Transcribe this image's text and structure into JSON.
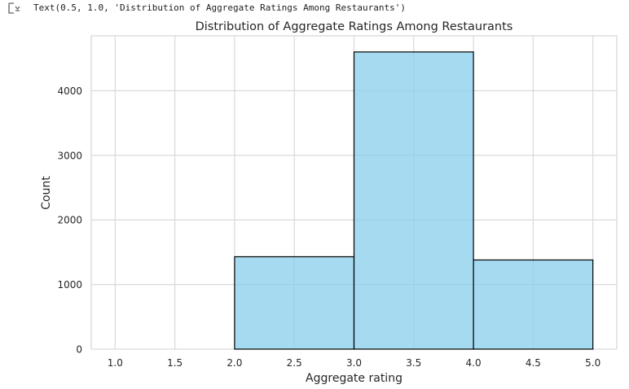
{
  "output": {
    "icon": "output-expand-icon",
    "text": "Text(0.5, 1.0, 'Distribution of Aggregate Ratings Among Restaurants')"
  },
  "chart_data": {
    "type": "bar",
    "title": "Distribution of Aggregate Ratings Among Restaurants",
    "xlabel": "Aggregate rating",
    "ylabel": "Count",
    "bins": [
      [
        2.0,
        3.0
      ],
      [
        3.0,
        4.0
      ],
      [
        4.0,
        5.0
      ]
    ],
    "values": [
      1430,
      4600,
      1380
    ],
    "xlim": [
      0.8,
      5.2
    ],
    "ylim": [
      0,
      4850
    ],
    "xticks": [
      1.0,
      1.5,
      2.0,
      2.5,
      3.0,
      3.5,
      4.0,
      4.5,
      5.0
    ],
    "xtick_labels": [
      "1.0",
      "1.5",
      "2.0",
      "2.5",
      "3.0",
      "3.5",
      "4.0",
      "4.5",
      "5.0"
    ],
    "yticks": [
      0,
      1000,
      2000,
      3000,
      4000
    ],
    "ytick_labels": [
      "0",
      "1000",
      "2000",
      "3000",
      "4000"
    ],
    "grid": true,
    "bar_color": "#87ceeb",
    "edge_color": "#000000",
    "grid_color": "#d9d9d9"
  }
}
